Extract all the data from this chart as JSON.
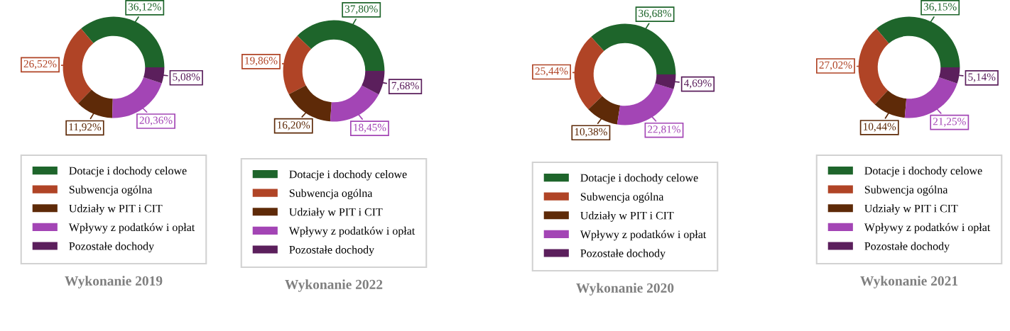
{
  "chart_data": [
    {
      "type": "donut",
      "title": "Wykonanie 2019",
      "categories": [
        "Dotacje i dochody celowe",
        "Subwencja ogólna",
        "Udziały w PIT i CIT",
        "Wpływy z podatków i opłat",
        "Pozostałe dochody"
      ],
      "values": [
        36.12,
        26.52,
        11.92,
        20.36,
        5.08
      ],
      "value_labels": [
        "36,12%",
        "26,52%",
        "11,92%",
        "20,36%",
        "5,08%"
      ],
      "colors": [
        "#1e652b",
        "#b04426",
        "#5e2a08",
        "#a345b5",
        "#5b1f5c"
      ],
      "legend": "bottom"
    },
    {
      "type": "donut",
      "title": "Wykonanie 2022",
      "categories": [
        "Dotacje i dochody celowe",
        "Subwencja ogólna",
        "Udziały w PIT i CIT",
        "Wpływy z podatków i opłat",
        "Pozostałe dochody"
      ],
      "values": [
        37.8,
        19.86,
        16.2,
        18.45,
        7.68
      ],
      "value_labels": [
        "37,80%",
        "19,86%",
        "16,20%",
        "18,45%",
        "7,68%"
      ],
      "colors": [
        "#1e652b",
        "#b04426",
        "#5e2a08",
        "#a345b5",
        "#5b1f5c"
      ],
      "legend": "bottom"
    },
    {
      "type": "donut",
      "title": "Wykonanie 2020",
      "categories": [
        "Dotacje i dochody celowe",
        "Subwencja ogólna",
        "Udziały w PIT i CIT",
        "Wpływy z podatków i opłat",
        "Pozostałe dochody"
      ],
      "values": [
        36.68,
        25.44,
        10.38,
        22.81,
        4.69
      ],
      "value_labels": [
        "36,68%",
        "25,44%",
        "10,38%",
        "22,81%",
        "4,69%"
      ],
      "colors": [
        "#1e652b",
        "#b04426",
        "#5e2a08",
        "#a345b5",
        "#5b1f5c"
      ],
      "legend": "bottom"
    },
    {
      "type": "donut",
      "title": "Wykonanie 2021",
      "categories": [
        "Dotacje i dochody celowe",
        "Subwencja ogólna",
        "Udziały w PIT i CIT",
        "Wpływy z podatków i opłat",
        "Pozostałe dochody"
      ],
      "values": [
        36.15,
        27.02,
        10.44,
        21.25,
        5.14
      ],
      "value_labels": [
        "36,15%",
        "27,02%",
        "10,44%",
        "21,25%",
        "5,14%"
      ],
      "colors": [
        "#1e652b",
        "#b04426",
        "#5e2a08",
        "#a345b5",
        "#5b1f5c"
      ],
      "legend": "bottom"
    }
  ]
}
